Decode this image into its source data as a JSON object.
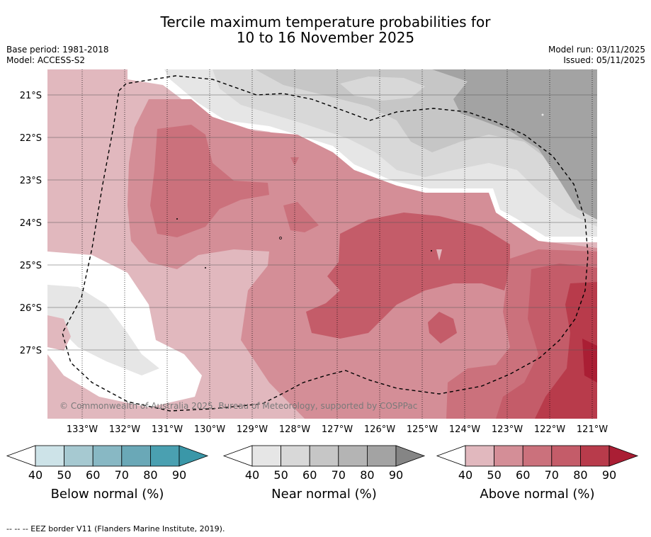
{
  "title_line1": "Tercile maximum temperature probabilities for",
  "title_line2": "10 to 16 November 2025",
  "base_period": "Base period: 1981-2018",
  "model": "Model: ACCESS-S2",
  "model_run": "Model run: 03/11/2025",
  "issued": "Issued: 05/11/2025",
  "lat_labels": [
    "21°S",
    "22°S",
    "23°S",
    "24°S",
    "25°S",
    "26°S",
    "27°S"
  ],
  "lon_labels": [
    "133°W",
    "132°W",
    "131°W",
    "130°W",
    "129°W",
    "128°W",
    "127°W",
    "126°W",
    "125°W",
    "124°W",
    "123°W",
    "122°W",
    "121°W"
  ],
  "copyright": "© Commonwealth of Australia 2025, Bureau of Meteorology, supported by COSPPac",
  "colorbars": [
    {
      "title": "Below normal (%)",
      "ticks": [
        "40",
        "50",
        "60",
        "70",
        "80",
        "90"
      ],
      "colors": [
        "#ffffff",
        "#cde3e8",
        "#a6c9d1",
        "#88b8c4",
        "#6aa8b7",
        "#4aa0b1",
        "#3a97a8"
      ]
    },
    {
      "title": "Near normal (%)",
      "ticks": [
        "40",
        "50",
        "60",
        "70",
        "80",
        "90"
      ],
      "colors": [
        "#ffffff",
        "#e6e6e6",
        "#d8d8d8",
        "#c6c6c6",
        "#b4b4b4",
        "#a3a3a3",
        "#858585"
      ]
    },
    {
      "title": "Above normal (%)",
      "ticks": [
        "40",
        "50",
        "60",
        "70",
        "80",
        "90"
      ],
      "colors": [
        "#ffffff",
        "#e1b8be",
        "#d48e97",
        "#cb717c",
        "#c45c69",
        "#b83b4b",
        "#aa1e34"
      ]
    }
  ],
  "footnote": "--  --  -- EEZ border V11 (Flanders Marine Institute, 2019)."
}
